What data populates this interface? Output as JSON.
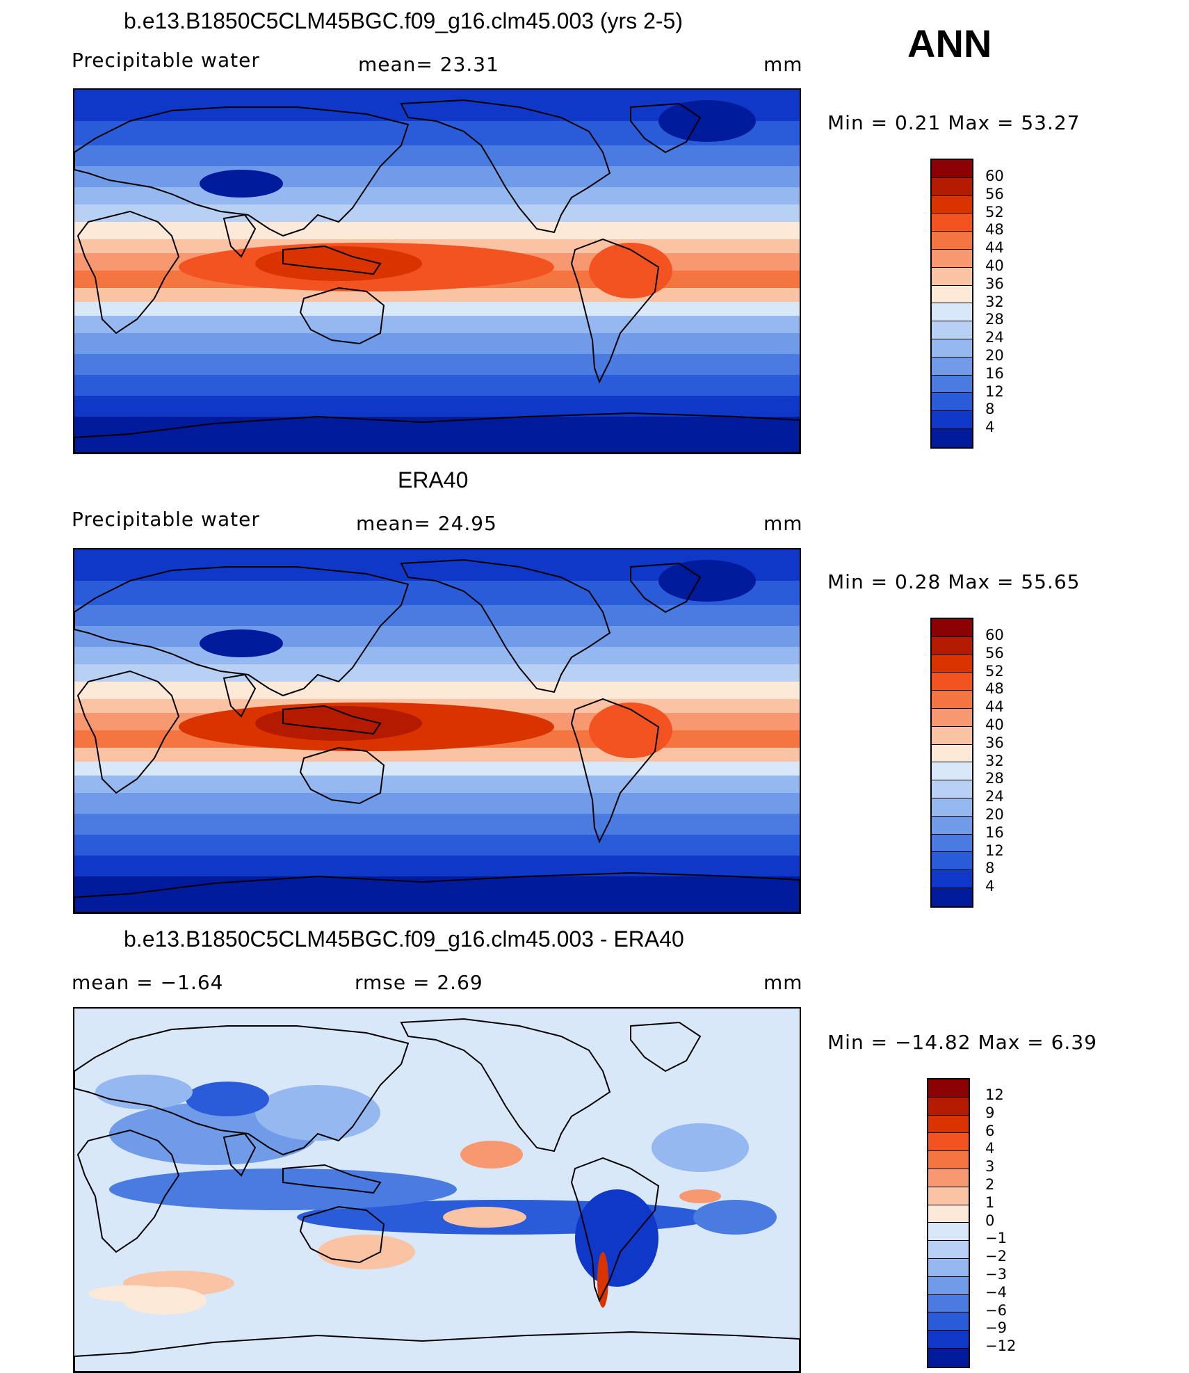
{
  "ann_label": "ANN",
  "chart_data": [
    {
      "type": "heatmap",
      "title": "b.e13.B1850C5CLM45BGC.f09_g16.clm45.003 (yrs 2-5)",
      "subtitle_left": "Precipitable  water",
      "mean_text": "mean=   23.31",
      "units": "mm",
      "minmax_text": "Min  =     0.21  Max  =    53.27",
      "min": 0.21,
      "max": 53.27,
      "mean": 23.31,
      "colorbar_labels": [
        "60",
        "56",
        "52",
        "48",
        "44",
        "40",
        "36",
        "32",
        "28",
        "24",
        "20",
        "16",
        "12",
        "8",
        "4"
      ],
      "colors": [
        "#8b0000",
        "#b31a00",
        "#d93300",
        "#f25320",
        "#f57540",
        "#f79870",
        "#fac3a4",
        "#fde9d7",
        "#d8e8f8",
        "#b7d0f4",
        "#95b8f0",
        "#6f9be8",
        "#4a7be0",
        "#2a5bd8",
        "#1038c8",
        "#001a9c"
      ]
    },
    {
      "type": "heatmap",
      "title": "ERA40",
      "subtitle_left": "Precipitable  water",
      "mean_text": "mean=   24.95",
      "units": "mm",
      "minmax_text": "Min  =     0.28  Max  =    55.65",
      "min": 0.28,
      "max": 55.65,
      "mean": 24.95,
      "colorbar_labels": [
        "60",
        "56",
        "52",
        "48",
        "44",
        "40",
        "36",
        "32",
        "28",
        "24",
        "20",
        "16",
        "12",
        "8",
        "4"
      ],
      "colors": [
        "#8b0000",
        "#b31a00",
        "#d93300",
        "#f25320",
        "#f57540",
        "#f79870",
        "#fac3a4",
        "#fde9d7",
        "#d8e8f8",
        "#b7d0f4",
        "#95b8f0",
        "#6f9be8",
        "#4a7be0",
        "#2a5bd8",
        "#1038c8",
        "#001a9c"
      ]
    },
    {
      "type": "heatmap",
      "title": "b.e13.B1850C5CLM45BGC.f09_g16.clm45.003 - ERA40",
      "subtitle_left": "mean  =    −1.64",
      "mean_text": "rmse  =     2.69",
      "units": "mm",
      "minmax_text": "Min  = −14.82  Max  =      6.39",
      "min": -14.82,
      "max": 6.39,
      "mean": -1.64,
      "rmse": 2.69,
      "colorbar_labels": [
        "12",
        "9",
        "6",
        "4",
        "3",
        "2",
        "1",
        "0",
        "−1",
        "−2",
        "−3",
        "−4",
        "−6",
        "−9",
        "−12"
      ],
      "colors": [
        "#8b0000",
        "#b31a00",
        "#d93300",
        "#f25320",
        "#f57540",
        "#f79870",
        "#fac3a4",
        "#fde9d7",
        "#d8e8f8",
        "#b7d0f4",
        "#95b8f0",
        "#6f9be8",
        "#4a7be0",
        "#2a5bd8",
        "#1038c8",
        "#001a9c"
      ]
    }
  ]
}
